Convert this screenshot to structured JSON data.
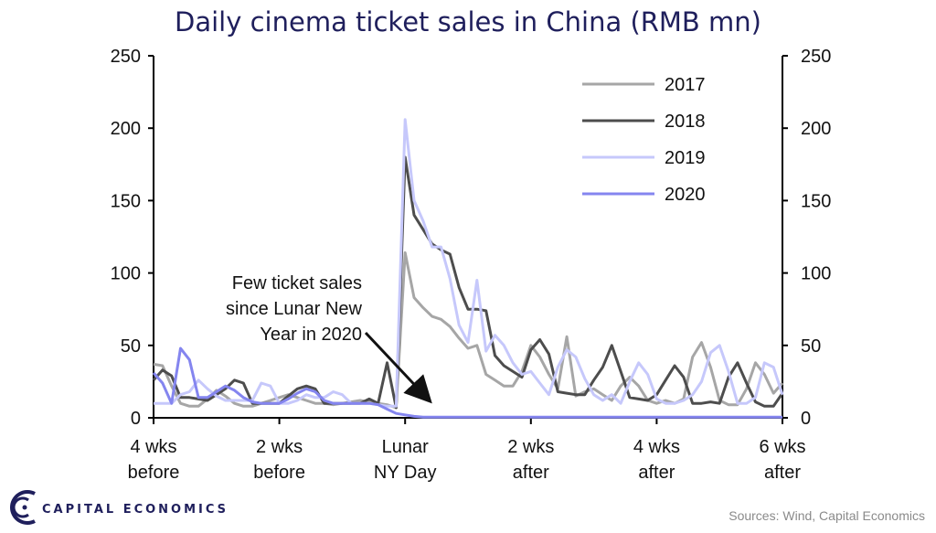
{
  "chart_data": {
    "type": "line",
    "title": "Daily cinema ticket sales in China (RMB mn)",
    "xlabel": "",
    "ylabel": "",
    "ylim": [
      0,
      250
    ],
    "yticks": [
      "0",
      "50",
      "100",
      "150",
      "200",
      "250"
    ],
    "xlim": [
      -28,
      42
    ],
    "xticks": [
      {
        "x": -28,
        "line1": "4 wks",
        "line2": "before"
      },
      {
        "x": -14,
        "line1": "2 wks",
        "line2": "before"
      },
      {
        "x": 0,
        "line1": "Lunar",
        "line2": "NY Day"
      },
      {
        "x": 14,
        "line1": "2 wks",
        "line2": "after"
      },
      {
        "x": 28,
        "line1": "4 wks",
        "line2": "after"
      },
      {
        "x": 42,
        "line1": "6 wks",
        "line2": "after"
      }
    ],
    "series": [
      {
        "name": "2017",
        "color": "#a6a6a6",
        "values": [
          [
            -28,
            37
          ],
          [
            -27,
            36
          ],
          [
            -26,
            22
          ],
          [
            -25,
            10
          ],
          [
            -24,
            8
          ],
          [
            -23,
            8
          ],
          [
            -22,
            13
          ],
          [
            -21,
            19
          ],
          [
            -20,
            15
          ],
          [
            -19,
            10
          ],
          [
            -18,
            8
          ],
          [
            -17,
            8
          ],
          [
            -16,
            10
          ],
          [
            -15,
            12
          ],
          [
            -14,
            14
          ],
          [
            -13,
            16
          ],
          [
            -12,
            14
          ],
          [
            -11,
            12
          ],
          [
            -10,
            10
          ],
          [
            -9,
            10
          ],
          [
            -8,
            9
          ],
          [
            -7,
            10
          ],
          [
            -6,
            11
          ],
          [
            -5,
            12
          ],
          [
            -4,
            11
          ],
          [
            -3,
            10
          ],
          [
            -2,
            9
          ],
          [
            -1,
            7
          ],
          [
            0,
            114
          ],
          [
            1,
            83
          ],
          [
            2,
            76
          ],
          [
            3,
            70
          ],
          [
            4,
            68
          ],
          [
            5,
            63
          ],
          [
            6,
            55
          ],
          [
            7,
            48
          ],
          [
            8,
            50
          ],
          [
            9,
            30
          ],
          [
            10,
            26
          ],
          [
            11,
            22
          ],
          [
            12,
            22
          ],
          [
            13,
            32
          ],
          [
            14,
            50
          ],
          [
            15,
            42
          ],
          [
            16,
            30
          ],
          [
            17,
            20
          ],
          [
            18,
            56
          ],
          [
            19,
            15
          ],
          [
            20,
            18
          ],
          [
            21,
            20
          ],
          [
            22,
            16
          ],
          [
            23,
            12
          ],
          [
            24,
            22
          ],
          [
            25,
            28
          ],
          [
            26,
            22
          ],
          [
            27,
            12
          ],
          [
            28,
            10
          ],
          [
            29,
            12
          ],
          [
            30,
            10
          ],
          [
            31,
            13
          ],
          [
            32,
            42
          ],
          [
            33,
            52
          ],
          [
            34,
            35
          ],
          [
            35,
            12
          ],
          [
            36,
            9
          ],
          [
            37,
            9
          ],
          [
            38,
            20
          ],
          [
            39,
            38
          ],
          [
            40,
            30
          ],
          [
            41,
            17
          ],
          [
            42,
            24
          ]
        ]
      },
      {
        "name": "2018",
        "color": "#4d4d4d",
        "values": [
          [
            -28,
            26
          ],
          [
            -27,
            33
          ],
          [
            -26,
            29
          ],
          [
            -25,
            14
          ],
          [
            -24,
            14
          ],
          [
            -23,
            13
          ],
          [
            -22,
            12
          ],
          [
            -21,
            16
          ],
          [
            -20,
            20
          ],
          [
            -19,
            26
          ],
          [
            -18,
            24
          ],
          [
            -17,
            10
          ],
          [
            -16,
            10
          ],
          [
            -15,
            10
          ],
          [
            -14,
            10
          ],
          [
            -13,
            15
          ],
          [
            -12,
            20
          ],
          [
            -11,
            22
          ],
          [
            -10,
            20
          ],
          [
            -9,
            10
          ],
          [
            -8,
            10
          ],
          [
            -7,
            10
          ],
          [
            -6,
            10
          ],
          [
            -5,
            10
          ],
          [
            -4,
            13
          ],
          [
            -3,
            10
          ],
          [
            -2,
            38
          ],
          [
            -1,
            7
          ],
          [
            0,
            180
          ],
          [
            1,
            140
          ],
          [
            2,
            130
          ],
          [
            3,
            120
          ],
          [
            4,
            116
          ],
          [
            5,
            113
          ],
          [
            6,
            90
          ],
          [
            7,
            75
          ],
          [
            8,
            75
          ],
          [
            9,
            74
          ],
          [
            10,
            43
          ],
          [
            11,
            36
          ],
          [
            12,
            32
          ],
          [
            13,
            28
          ],
          [
            14,
            47
          ],
          [
            15,
            54
          ],
          [
            16,
            44
          ],
          [
            17,
            18
          ],
          [
            18,
            17
          ],
          [
            19,
            16
          ],
          [
            20,
            16
          ],
          [
            21,
            26
          ],
          [
            22,
            35
          ],
          [
            23,
            50
          ],
          [
            24,
            32
          ],
          [
            25,
            14
          ],
          [
            26,
            13
          ],
          [
            27,
            12
          ],
          [
            28,
            16
          ],
          [
            29,
            26
          ],
          [
            30,
            36
          ],
          [
            31,
            28
          ],
          [
            32,
            10
          ],
          [
            33,
            10
          ],
          [
            34,
            11
          ],
          [
            35,
            10
          ],
          [
            36,
            28
          ],
          [
            37,
            38
          ],
          [
            38,
            24
          ],
          [
            39,
            11
          ],
          [
            40,
            8
          ],
          [
            41,
            8
          ],
          [
            42,
            17
          ]
        ]
      },
      {
        "name": "2019",
        "color": "#c6c8fb",
        "values": [
          [
            -28,
            10
          ],
          [
            -27,
            10
          ],
          [
            -26,
            10
          ],
          [
            -25,
            16
          ],
          [
            -24,
            18
          ],
          [
            -23,
            26
          ],
          [
            -22,
            20
          ],
          [
            -21,
            15
          ],
          [
            -20,
            12
          ],
          [
            -19,
            12
          ],
          [
            -18,
            12
          ],
          [
            -17,
            12
          ],
          [
            -16,
            24
          ],
          [
            -15,
            22
          ],
          [
            -14,
            10
          ],
          [
            -13,
            10
          ],
          [
            -12,
            12
          ],
          [
            -11,
            16
          ],
          [
            -10,
            14
          ],
          [
            -9,
            14
          ],
          [
            -8,
            18
          ],
          [
            -7,
            16
          ],
          [
            -6,
            10
          ],
          [
            -5,
            10
          ],
          [
            -4,
            10
          ],
          [
            -3,
            9
          ],
          [
            -2,
            8
          ],
          [
            -1,
            8
          ],
          [
            0,
            206
          ],
          [
            1,
            150
          ],
          [
            2,
            136
          ],
          [
            3,
            118
          ],
          [
            4,
            118
          ],
          [
            5,
            96
          ],
          [
            6,
            64
          ],
          [
            7,
            52
          ],
          [
            8,
            95
          ],
          [
            9,
            46
          ],
          [
            10,
            57
          ],
          [
            11,
            50
          ],
          [
            12,
            38
          ],
          [
            13,
            30
          ],
          [
            14,
            32
          ],
          [
            15,
            24
          ],
          [
            16,
            16
          ],
          [
            17,
            35
          ],
          [
            18,
            47
          ],
          [
            19,
            42
          ],
          [
            20,
            27
          ],
          [
            21,
            16
          ],
          [
            22,
            12
          ],
          [
            23,
            16
          ],
          [
            24,
            10
          ],
          [
            25,
            25
          ],
          [
            26,
            38
          ],
          [
            27,
            30
          ],
          [
            28,
            13
          ],
          [
            29,
            10
          ],
          [
            30,
            10
          ],
          [
            31,
            12
          ],
          [
            32,
            16
          ],
          [
            33,
            25
          ],
          [
            34,
            45
          ],
          [
            35,
            50
          ],
          [
            36,
            32
          ],
          [
            37,
            10
          ],
          [
            38,
            10
          ],
          [
            39,
            14
          ],
          [
            40,
            38
          ],
          [
            41,
            35
          ],
          [
            42,
            16
          ]
        ]
      },
      {
        "name": "2020",
        "color": "#8485ef",
        "values": [
          [
            -28,
            31
          ],
          [
            -27,
            24
          ],
          [
            -26,
            10
          ],
          [
            -25,
            48
          ],
          [
            -24,
            40
          ],
          [
            -23,
            14
          ],
          [
            -22,
            14
          ],
          [
            -21,
            18
          ],
          [
            -20,
            22
          ],
          [
            -19,
            19
          ],
          [
            -18,
            14
          ],
          [
            -17,
            11
          ],
          [
            -16,
            10
          ],
          [
            -15,
            10
          ],
          [
            -14,
            10
          ],
          [
            -13,
            13
          ],
          [
            -12,
            17
          ],
          [
            -11,
            20
          ],
          [
            -10,
            18
          ],
          [
            -9,
            12
          ],
          [
            -8,
            10
          ],
          [
            -7,
            10
          ],
          [
            -6,
            10
          ],
          [
            -5,
            10
          ],
          [
            -4,
            10
          ],
          [
            -3,
            9
          ],
          [
            -2,
            6
          ],
          [
            -1,
            3
          ],
          [
            0,
            2
          ],
          [
            1,
            1
          ],
          [
            2,
            0.5
          ],
          [
            3,
            0.5
          ],
          [
            4,
            0.5
          ],
          [
            5,
            0.5
          ],
          [
            6,
            0.5
          ],
          [
            7,
            0.5
          ],
          [
            8,
            0.5
          ],
          [
            9,
            0.5
          ],
          [
            10,
            0.5
          ],
          [
            11,
            0.5
          ],
          [
            12,
            0.5
          ],
          [
            13,
            0.5
          ],
          [
            14,
            0.5
          ],
          [
            15,
            0.5
          ],
          [
            16,
            0.5
          ],
          [
            17,
            0.5
          ],
          [
            18,
            0.5
          ],
          [
            19,
            0.5
          ],
          [
            20,
            0.5
          ],
          [
            21,
            0.5
          ],
          [
            22,
            0.5
          ],
          [
            23,
            0.5
          ],
          [
            24,
            0.5
          ],
          [
            25,
            0.5
          ],
          [
            26,
            0.5
          ],
          [
            27,
            0.5
          ],
          [
            28,
            0.5
          ],
          [
            29,
            0.5
          ],
          [
            30,
            0.5
          ],
          [
            31,
            0.5
          ],
          [
            32,
            0.5
          ],
          [
            33,
            0.5
          ],
          [
            34,
            0.5
          ],
          [
            35,
            0.5
          ],
          [
            36,
            0.5
          ],
          [
            37,
            0.5
          ],
          [
            38,
            0.5
          ],
          [
            39,
            0.5
          ],
          [
            40,
            0.5
          ],
          [
            41,
            0.5
          ],
          [
            42,
            0.5
          ]
        ]
      }
    ],
    "legend_position": "top-right",
    "annotation": {
      "lines": [
        "Few ticket sales",
        "since Lunar New",
        "Year in 2020"
      ],
      "target": {
        "x": 3,
        "y": 0
      }
    }
  },
  "branding": {
    "logo_text": "CAPITAL ECONOMICS"
  },
  "source": "Sources: Wind, Capital Economics"
}
